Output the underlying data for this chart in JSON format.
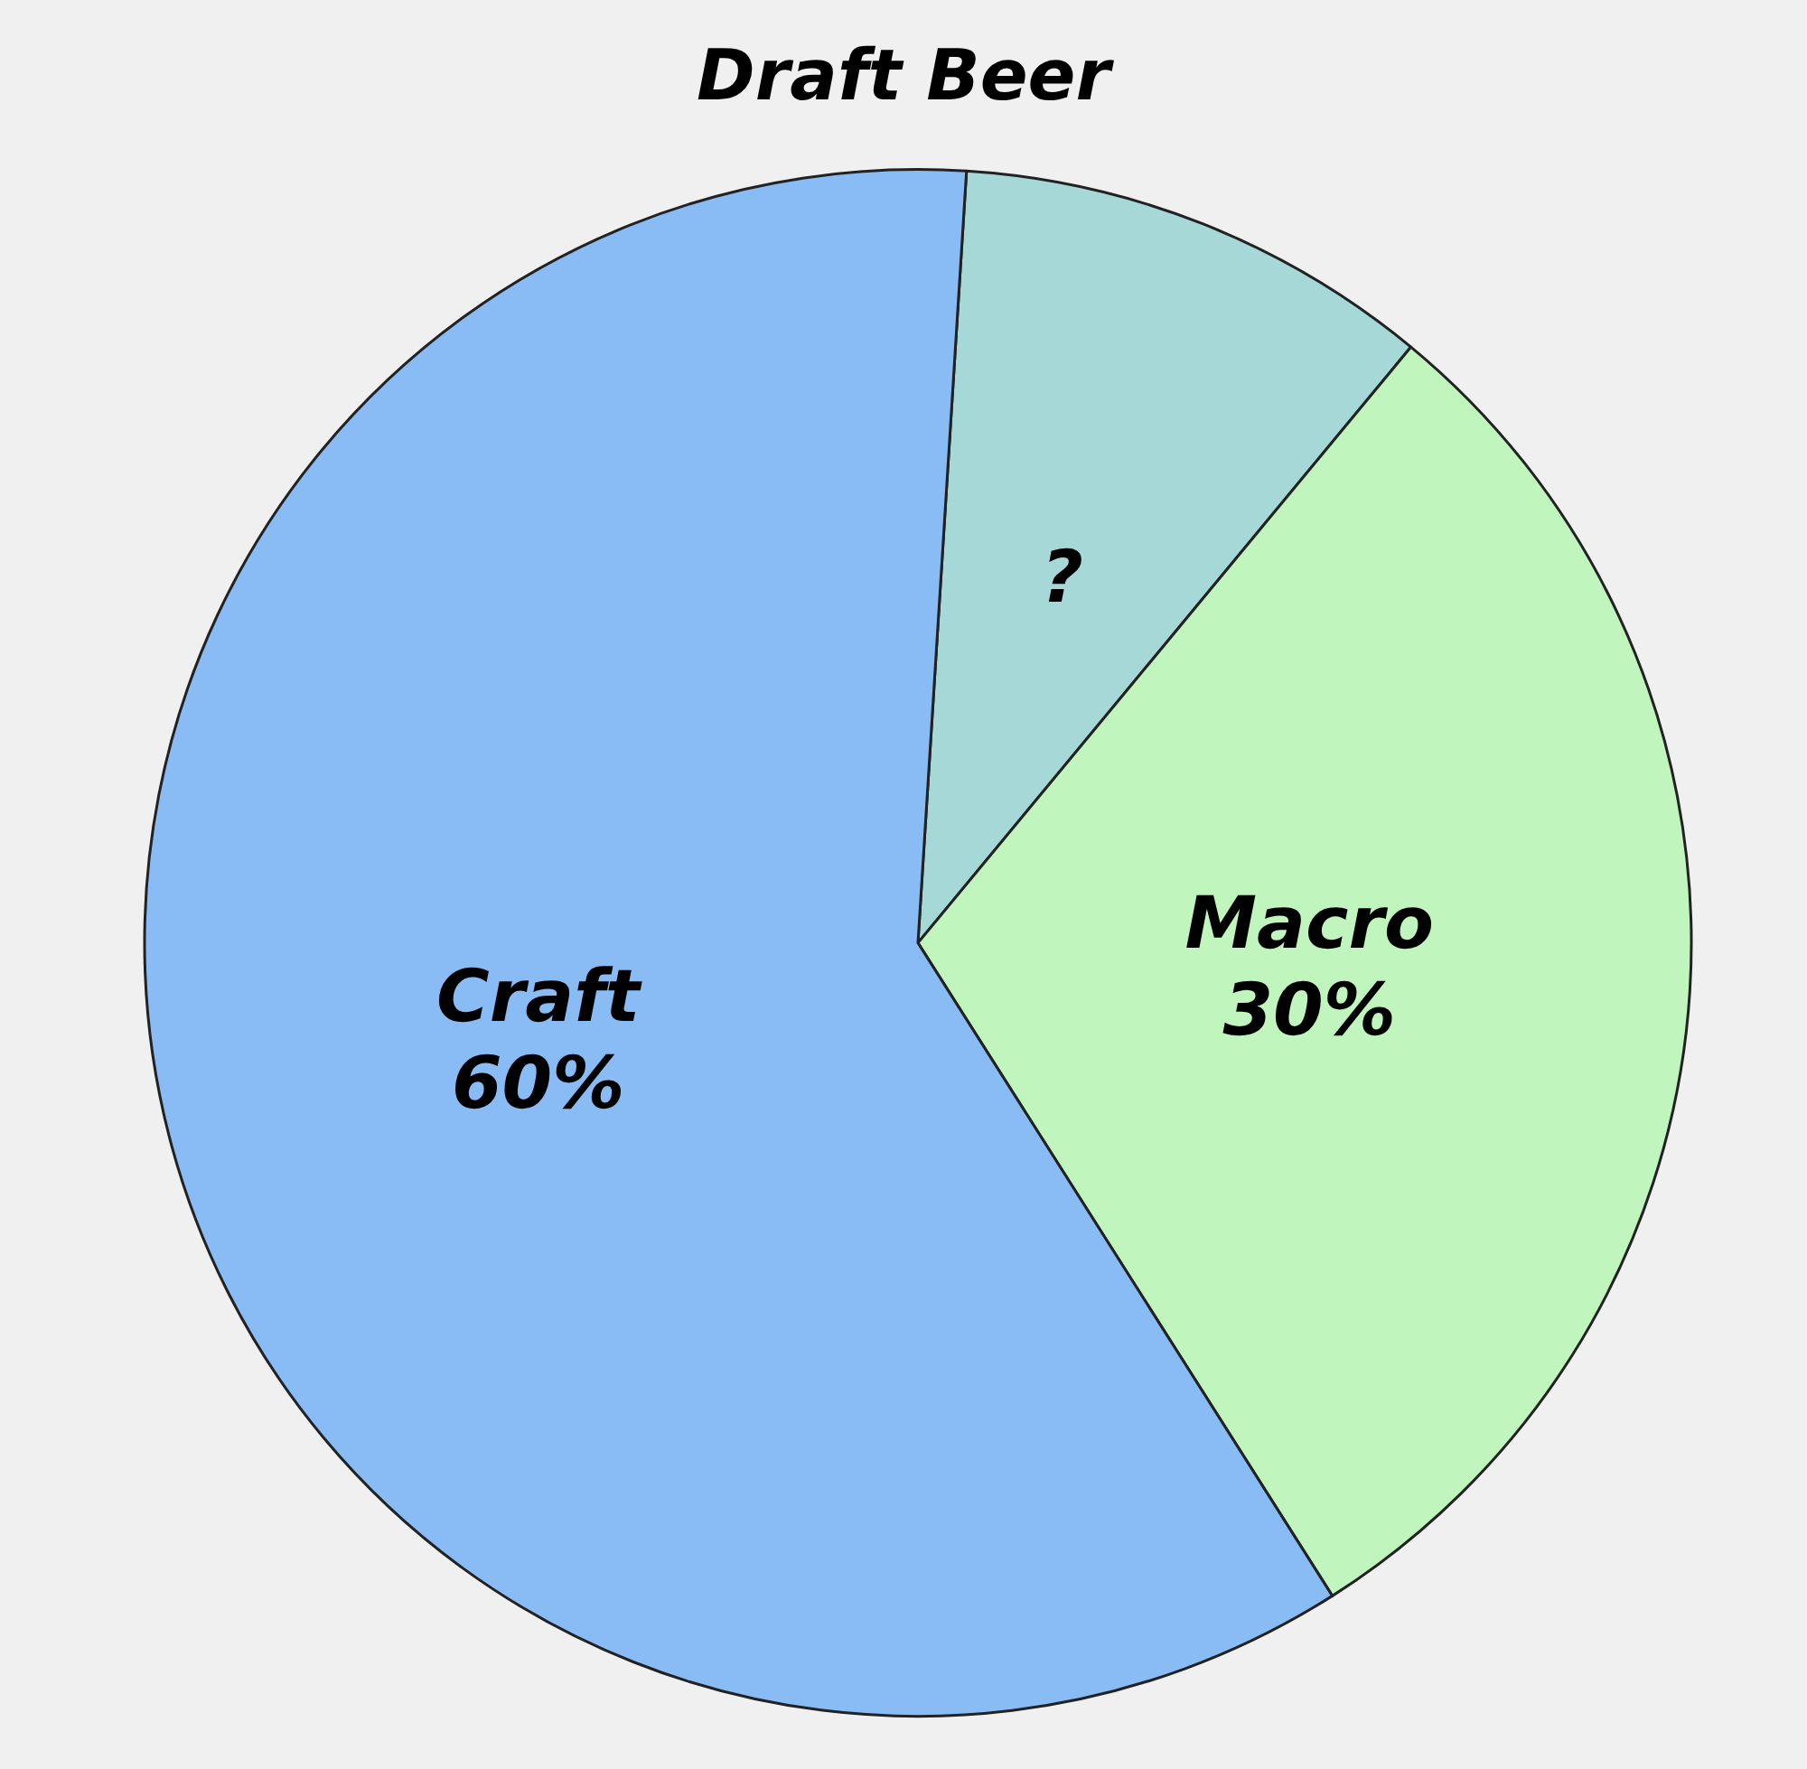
{
  "chart_data": {
    "type": "pie",
    "title": "Draft Beer",
    "categories": [
      "?",
      "Macro",
      "Craft"
    ],
    "values": [
      10,
      30,
      60
    ],
    "value_labels": [
      null,
      "30%",
      "60%"
    ],
    "colors": [
      "#a6d8d8",
      "#c1f5be",
      "#89bcf5"
    ]
  }
}
